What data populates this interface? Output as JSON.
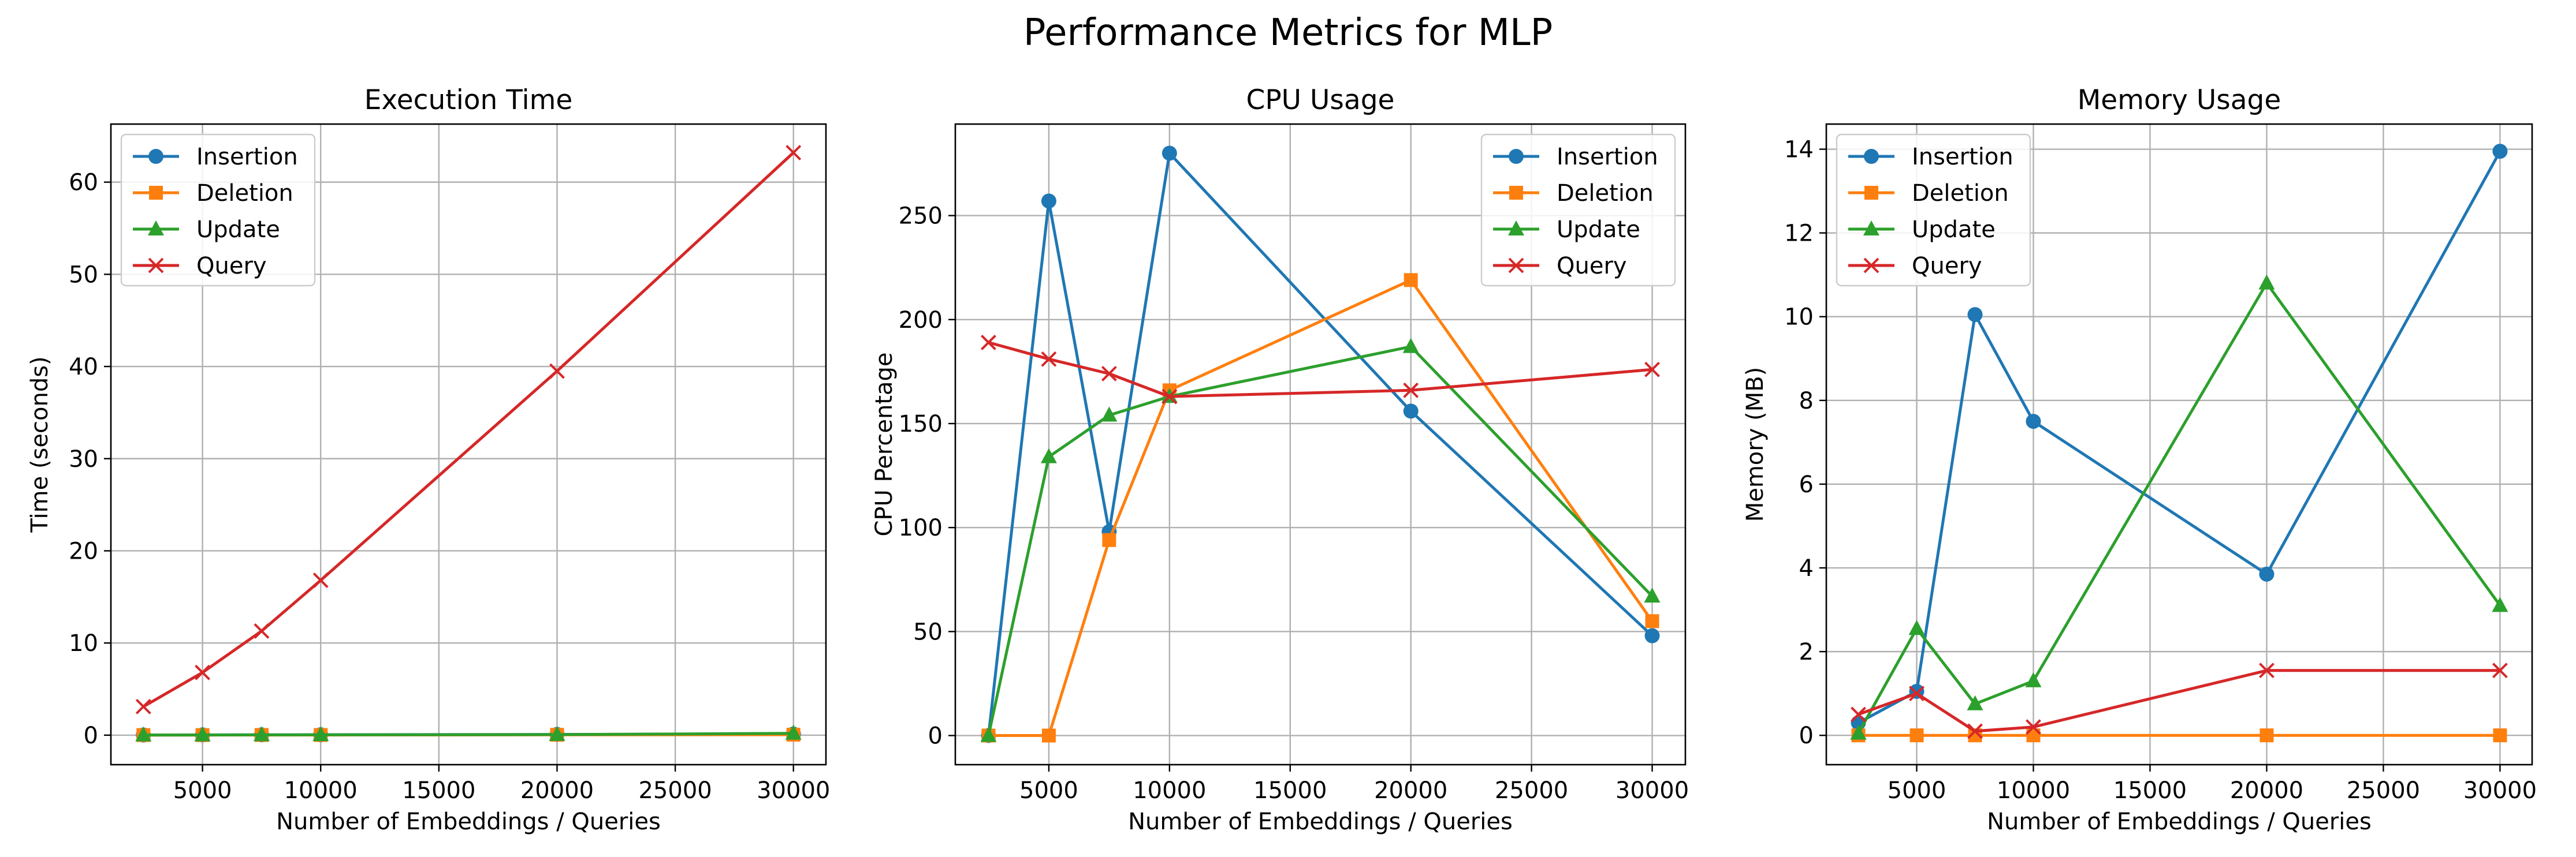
{
  "figure": {
    "title": "Performance Metrics for MLP"
  },
  "colors": {
    "Insertion": "#1f77b4",
    "Deletion": "#ff7f0e",
    "Update": "#2ca02c",
    "Query": "#d62728",
    "grid": "#b0b0b0",
    "axes": "#000000"
  },
  "chart_data": [
    {
      "type": "line",
      "title": "Execution Time",
      "xlabel": "Number of Embeddings / Queries",
      "ylabel": "Time (seconds)",
      "x": [
        2500,
        5000,
        7500,
        10000,
        20000,
        30000
      ],
      "xlim": [
        1125,
        31375
      ],
      "ylim": [
        -3.2,
        66.3
      ],
      "xticks": [
        5000,
        10000,
        15000,
        20000,
        25000,
        30000
      ],
      "yticks": [
        0,
        10,
        20,
        30,
        40,
        50,
        60
      ],
      "grid": true,
      "legend_position": "upper-left",
      "series": [
        {
          "name": "Insertion",
          "marker": "circle",
          "values": [
            0.02,
            0.03,
            0.04,
            0.05,
            0.08,
            0.12
          ]
        },
        {
          "name": "Deletion",
          "marker": "square",
          "values": [
            0.01,
            0.01,
            0.02,
            0.02,
            0.04,
            0.05
          ]
        },
        {
          "name": "Update",
          "marker": "triangle",
          "values": [
            0.02,
            0.02,
            0.03,
            0.04,
            0.06,
            0.2
          ]
        },
        {
          "name": "Query",
          "marker": "x",
          "values": [
            3.1,
            6.8,
            11.3,
            16.8,
            39.5,
            63.2
          ]
        }
      ]
    },
    {
      "type": "line",
      "title": "CPU Usage",
      "xlabel": "Number of Embeddings / Queries",
      "ylabel": "CPU Percentage",
      "x": [
        2500,
        5000,
        7500,
        10000,
        20000,
        30000
      ],
      "xlim": [
        1125,
        31375
      ],
      "ylim": [
        -14,
        294
      ],
      "xticks": [
        5000,
        10000,
        15000,
        20000,
        25000,
        30000
      ],
      "yticks": [
        0,
        50,
        100,
        150,
        200,
        250
      ],
      "grid": true,
      "legend_position": "upper-right",
      "series": [
        {
          "name": "Insertion",
          "marker": "circle",
          "values": [
            0,
            257,
            98,
            280,
            156,
            48
          ]
        },
        {
          "name": "Deletion",
          "marker": "square",
          "values": [
            0,
            0,
            94,
            166,
            219,
            55
          ]
        },
        {
          "name": "Update",
          "marker": "triangle",
          "values": [
            0,
            134,
            154,
            163,
            187,
            67
          ]
        },
        {
          "name": "Query",
          "marker": "x",
          "values": [
            189,
            181,
            174,
            163,
            166,
            176
          ]
        }
      ]
    },
    {
      "type": "line",
      "title": "Memory Usage",
      "xlabel": "Number of Embeddings / Queries",
      "ylabel": "Memory (MB)",
      "x": [
        2500,
        5000,
        7500,
        10000,
        20000,
        30000
      ],
      "xlim": [
        1125,
        31375
      ],
      "ylim": [
        -0.7,
        14.6
      ],
      "xticks": [
        5000,
        10000,
        15000,
        20000,
        25000,
        30000
      ],
      "yticks": [
        0,
        2,
        4,
        6,
        8,
        10,
        12,
        14
      ],
      "grid": true,
      "legend_position": "upper-left",
      "series": [
        {
          "name": "Insertion",
          "marker": "circle",
          "values": [
            0.3,
            1.05,
            10.05,
            7.5,
            3.85,
            13.95
          ]
        },
        {
          "name": "Deletion",
          "marker": "square",
          "values": [
            0,
            0,
            0,
            0,
            0,
            0
          ]
        },
        {
          "name": "Update",
          "marker": "triangle",
          "values": [
            0.05,
            2.55,
            0.75,
            1.3,
            10.8,
            3.1
          ]
        },
        {
          "name": "Query",
          "marker": "x",
          "values": [
            0.5,
            1.0,
            0.1,
            0.2,
            1.55,
            1.55
          ]
        }
      ]
    }
  ]
}
